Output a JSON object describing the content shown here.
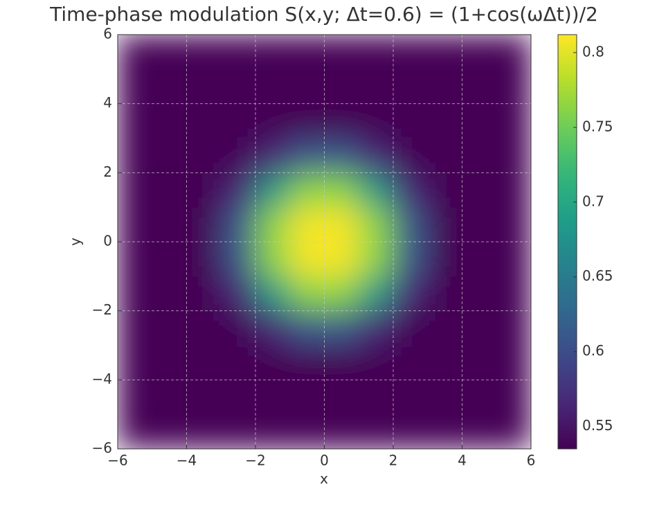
{
  "chart_data": {
    "type": "heatmap",
    "title": "Time-phase modulation S(x,y; Δt=0.6) = (1+cos(ωΔt))/2",
    "xlabel": "x",
    "ylabel": "y",
    "xlim": [
      -6,
      6
    ],
    "ylim": [
      -6,
      6
    ],
    "xticks": [
      {
        "value": -6,
        "label": "−6"
      },
      {
        "value": -4,
        "label": "−4"
      },
      {
        "value": -2,
        "label": "−2"
      },
      0,
      2,
      4,
      6
    ],
    "yticks": [
      {
        "value": -6,
        "label": "−6"
      },
      {
        "value": -4,
        "label": "−4"
      },
      {
        "value": -2,
        "label": "−2"
      },
      0,
      2,
      4,
      6
    ],
    "grid": true,
    "colormap": "viridis",
    "z": [
      [
        0.535,
        0.535,
        0.535,
        0.535,
        0.535,
        0.535,
        0.535,
        0.535,
        0.535,
        0.535,
        0.535,
        0.535
      ],
      [
        0.535,
        0.535,
        0.535,
        0.535,
        0.535,
        0.535,
        0.535,
        0.535,
        0.535,
        0.535,
        0.535,
        0.535
      ],
      [
        0.535,
        0.535,
        0.535,
        0.535,
        0.535,
        0.537,
        0.537,
        0.535,
        0.535,
        0.535,
        0.535,
        0.535
      ],
      [
        0.535,
        0.535,
        0.535,
        0.537,
        0.566,
        0.612,
        0.612,
        0.566,
        0.537,
        0.535,
        0.535,
        0.535
      ],
      [
        0.535,
        0.535,
        0.535,
        0.566,
        0.684,
        0.763,
        0.763,
        0.684,
        0.566,
        0.535,
        0.535,
        0.535
      ],
      [
        0.535,
        0.535,
        0.537,
        0.612,
        0.763,
        0.808,
        0.808,
        0.763,
        0.612,
        0.537,
        0.535,
        0.535
      ],
      [
        0.535,
        0.535,
        0.537,
        0.612,
        0.763,
        0.808,
        0.808,
        0.763,
        0.612,
        0.537,
        0.535,
        0.535
      ],
      [
        0.535,
        0.535,
        0.535,
        0.566,
        0.684,
        0.763,
        0.763,
        0.684,
        0.566,
        0.535,
        0.535,
        0.535
      ],
      [
        0.535,
        0.535,
        0.535,
        0.537,
        0.566,
        0.612,
        0.612,
        0.566,
        0.537,
        0.535,
        0.535,
        0.535
      ],
      [
        0.535,
        0.535,
        0.535,
        0.535,
        0.535,
        0.537,
        0.537,
        0.535,
        0.535,
        0.535,
        0.535,
        0.535
      ],
      [
        0.535,
        0.535,
        0.535,
        0.535,
        0.535,
        0.535,
        0.535,
        0.535,
        0.535,
        0.535,
        0.535,
        0.535
      ],
      [
        0.535,
        0.535,
        0.535,
        0.535,
        0.535,
        0.535,
        0.535,
        0.535,
        0.535,
        0.535,
        0.535,
        0.535
      ]
    ],
    "colorbar": {
      "clim": [
        0.535,
        0.812
      ],
      "ticks": [
        0.55,
        0.6,
        0.65,
        0.7,
        0.75,
        0.8
      ]
    }
  }
}
